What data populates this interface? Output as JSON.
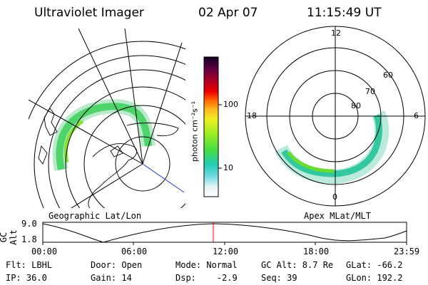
{
  "header": {
    "instrument": "Ultraviolet Imager",
    "date": "02 Apr 07",
    "time": "11:15:49 UT"
  },
  "left_panel": {
    "caption": "Geographic Lat/Lon"
  },
  "right_panel": {
    "caption": "Apex MLat/MLT",
    "mlt_labels": [
      "12",
      "18",
      "6",
      "0"
    ],
    "lat_labels": [
      "60",
      "70",
      "80"
    ]
  },
  "colorbar": {
    "unit_label": "photon cm⁻²s⁻¹",
    "scale": "log",
    "ticks": [
      "100",
      "10"
    ]
  },
  "altitude_plot": {
    "ylabel": "GC Alt",
    "y_ticks": [
      "9.0",
      "1.8"
    ],
    "x_ticks": [
      "00:00",
      "06:00",
      "12:00",
      "18:00",
      "23:59"
    ],
    "current_marker_color": "#ff0000"
  },
  "info": {
    "filter": "Flt: LBHL",
    "ip": "IP: 36.0",
    "door": "Door: Open",
    "gain": "Gain: 14",
    "mode": "Mode: Normal",
    "dsp": "Dsp:    -2.9",
    "gc_alt": "GC Alt: 8.7 Re",
    "seq": "Seq: 39",
    "glat": "GLat: -66.2",
    "glon": "GLon: 192.2"
  },
  "colors": {
    "aurora_low": "#33cc99",
    "aurora_high": "#66dd33",
    "track_line": "#4455cc"
  }
}
